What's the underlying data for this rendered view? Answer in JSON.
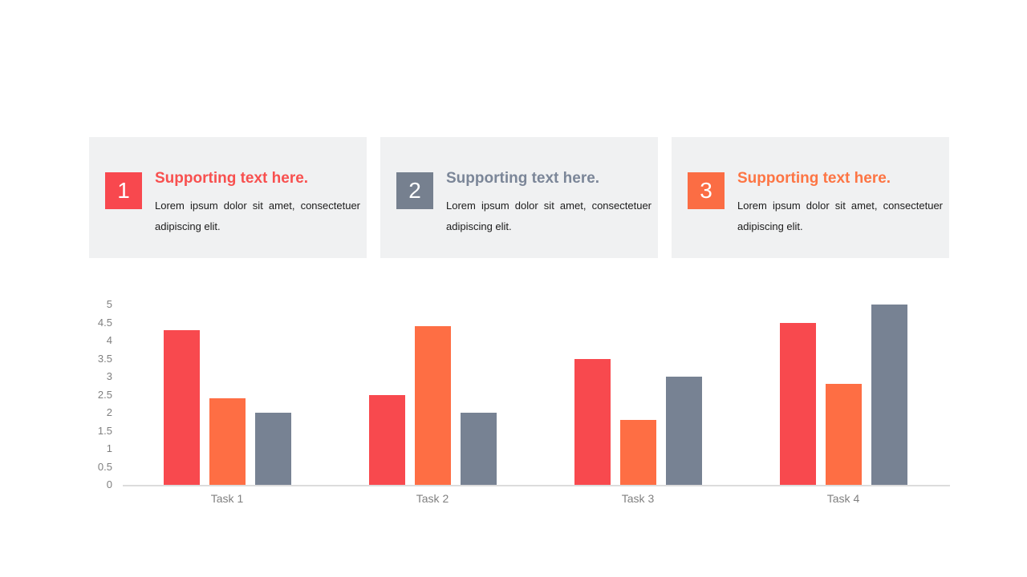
{
  "page": {
    "background": "#ffffff"
  },
  "cards": [
    {
      "number": "1",
      "heading": "Supporting text here.",
      "body": "Lorem ipsum dolor sit amet, consectetuer adipiscing elit.",
      "badge_color": "#F8484E",
      "heading_color": "#F8504F"
    },
    {
      "number": "2",
      "heading": "Supporting text here.",
      "body": "Lorem ipsum dolor sit amet, consectetuer adipiscing elit.",
      "badge_color": "#76808F",
      "heading_color": "#7B8698"
    },
    {
      "number": "3",
      "heading": "Supporting text here.",
      "body": "Lorem ipsum dolor sit amet, consectetuer adipiscing elit.",
      "badge_color": "#FB6D44",
      "heading_color": "#FD7544"
    }
  ],
  "chart_data": {
    "type": "bar",
    "title": "",
    "xlabel": "",
    "ylabel": "",
    "categories": [
      "Task 1",
      "Task 2",
      "Task 3",
      "Task 4"
    ],
    "series": [
      {
        "name": "red",
        "color": "#F8494E",
        "values": [
          4.3,
          2.5,
          3.5,
          4.5
        ]
      },
      {
        "name": "orange",
        "color": "#FE6E44",
        "values": [
          2.4,
          4.4,
          1.8,
          2.8
        ]
      },
      {
        "name": "gray",
        "color": "#778293",
        "values": [
          2.0,
          2.0,
          3.0,
          5.0
        ]
      }
    ],
    "ylim": [
      0,
      5
    ],
    "yticks": [
      0,
      0.5,
      1,
      1.5,
      2,
      2.5,
      3,
      3.5,
      4,
      4.5,
      5
    ],
    "ytick_labels": [
      "0",
      "0.5",
      "1",
      "1.5",
      "2",
      "2.5",
      "3",
      "3.5",
      "4",
      "4.5",
      "5"
    ],
    "grid": false,
    "legend": "none",
    "axis_line_color": "#DCDCDC",
    "tick_label_color": "#7F7F7F"
  }
}
